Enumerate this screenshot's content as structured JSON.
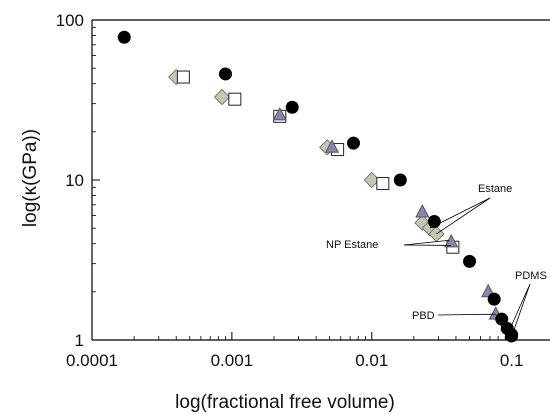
{
  "chart_data": {
    "type": "scatter",
    "xscale": "log",
    "yscale": "log",
    "xlim": [
      0.0001,
      0.1
    ],
    "ylim": [
      1,
      100
    ],
    "xlabel": "log(fractional free volume)",
    "ylabel": "log(κ(GPa))",
    "x_ticks": [
      {
        "value": 0.0001,
        "label": "0.0001"
      },
      {
        "value": 0.001,
        "label": "0.001"
      },
      {
        "value": 0.01,
        "label": "0.01"
      },
      {
        "value": 0.1,
        "label": "0.1"
      }
    ],
    "y_ticks": [
      {
        "value": 1,
        "label": "1"
      },
      {
        "value": 10,
        "label": "10"
      },
      {
        "value": 100,
        "label": "100"
      }
    ],
    "grid": false,
    "legend": "none",
    "series": [
      {
        "marker": "circle",
        "color": "#000000",
        "points": [
          {
            "x": 0.00017,
            "y": 78
          },
          {
            "x": 0.0009,
            "y": 46
          },
          {
            "x": 0.0027,
            "y": 28.5
          },
          {
            "x": 0.0074,
            "y": 17
          },
          {
            "x": 0.016,
            "y": 10
          },
          {
            "x": 0.028,
            "y": 5.5
          },
          {
            "x": 0.05,
            "y": 3.1
          },
          {
            "x": 0.075,
            "y": 1.8
          },
          {
            "x": 0.085,
            "y": 1.35
          },
          {
            "x": 0.093,
            "y": 1.18
          },
          {
            "x": 0.1,
            "y": 1.08
          },
          {
            "x": 0.1,
            "y": 1.06
          }
        ]
      },
      {
        "marker": "diamond",
        "color": "#c8c5b2",
        "stroke": "#7a7a70",
        "points": [
          {
            "x": 0.0004,
            "y": 44
          },
          {
            "x": 0.00085,
            "y": 33
          },
          {
            "x": 0.0048,
            "y": 16
          },
          {
            "x": 0.01,
            "y": 10
          },
          {
            "x": 0.023,
            "y": 5.4
          },
          {
            "x": 0.026,
            "y": 5
          },
          {
            "x": 0.029,
            "y": 4.6
          }
        ]
      },
      {
        "marker": "square-open",
        "color": "#ffffff",
        "stroke": "#222222",
        "points": [
          {
            "x": 0.00045,
            "y": 44
          },
          {
            "x": 0.00105,
            "y": 32
          },
          {
            "x": 0.0022,
            "y": 25
          },
          {
            "x": 0.0057,
            "y": 15.5
          },
          {
            "x": 0.012,
            "y": 9.5
          },
          {
            "x": 0.038,
            "y": 3.8
          }
        ]
      },
      {
        "marker": "triangle",
        "color": "#8a86a8",
        "stroke": "#55526e",
        "points": [
          {
            "x": 0.0022,
            "y": 25.5
          },
          {
            "x": 0.0052,
            "y": 16
          },
          {
            "x": 0.023,
            "y": 6.3
          },
          {
            "x": 0.037,
            "y": 4.1
          },
          {
            "x": 0.068,
            "y": 2
          },
          {
            "x": 0.077,
            "y": 1.45
          }
        ]
      }
    ],
    "annotations": [
      {
        "text": "Estane",
        "target": {
          "x": 0.029,
          "y": 4.6
        }
      },
      {
        "text": "NP Estane",
        "target": {
          "x": 0.037,
          "y": 3.9
        }
      },
      {
        "text": "PBD",
        "target": {
          "x": 0.077,
          "y": 1.45
        }
      },
      {
        "text": "PDMS",
        "target": {
          "x": 0.095,
          "y": 1.12
        }
      }
    ]
  }
}
